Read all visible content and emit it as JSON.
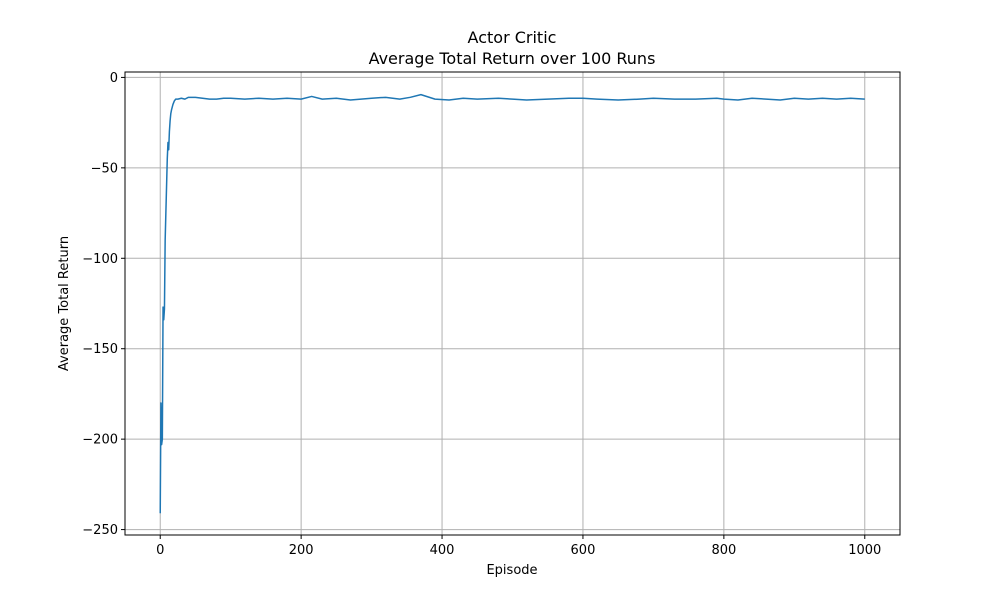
{
  "chart_data": {
    "type": "line",
    "title": "Actor Critic",
    "subtitle": "Average Total Return over 100 Runs",
    "xlabel": "Episode",
    "ylabel": "Average Total Return",
    "xlim": [
      -50,
      1050
    ],
    "ylim": [
      -253,
      3
    ],
    "xticks": [
      0,
      200,
      400,
      600,
      800,
      1000
    ],
    "yticks": [
      0,
      -50,
      -100,
      -150,
      -200,
      -250
    ],
    "xtick_labels": [
      "0",
      "200",
      "400",
      "600",
      "800",
      "1000"
    ],
    "ytick_labels": [
      "0",
      "−50",
      "−100",
      "−150",
      "−200",
      "−250"
    ],
    "grid": true,
    "series": [
      {
        "color": "#1f77b4",
        "x": [
          0,
          1,
          2,
          3,
          4,
          5,
          6,
          7,
          8,
          9,
          10,
          11,
          12,
          13,
          14,
          15,
          16,
          18,
          20,
          22,
          25,
          30,
          35,
          40,
          50,
          60,
          70,
          80,
          90,
          100,
          120,
          140,
          160,
          180,
          200,
          215,
          230,
          250,
          270,
          300,
          320,
          340,
          355,
          370,
          390,
          410,
          420,
          430,
          450,
          480,
          500,
          520,
          550,
          580,
          600,
          620,
          650,
          680,
          700,
          730,
          760,
          790,
          800,
          820,
          840,
          860,
          880,
          900,
          920,
          940,
          960,
          980,
          1000
        ],
        "y": [
          -241,
          -180,
          -203,
          -200,
          -127,
          -134,
          -128,
          -90,
          -75,
          -60,
          -45,
          -36,
          -40,
          -30,
          -24,
          -20,
          -18,
          -15,
          -13,
          -12,
          -12,
          -11.5,
          -12,
          -11,
          -11,
          -11.5,
          -12,
          -12,
          -11.5,
          -11.5,
          -12,
          -11.5,
          -12,
          -11.5,
          -12,
          -10.5,
          -12,
          -11.5,
          -12.5,
          -11.5,
          -11,
          -12,
          -11,
          -9.5,
          -12,
          -12.5,
          -12,
          -11.5,
          -12,
          -11.5,
          -12,
          -12.5,
          -12,
          -11.5,
          -11.5,
          -12,
          -12.5,
          -12,
          -11.5,
          -12,
          -12,
          -11.5,
          -12,
          -12.5,
          -11.5,
          -12,
          -12.5,
          -11.5,
          -12,
          -11.5,
          -12,
          -11.5,
          -12
        ]
      }
    ]
  }
}
